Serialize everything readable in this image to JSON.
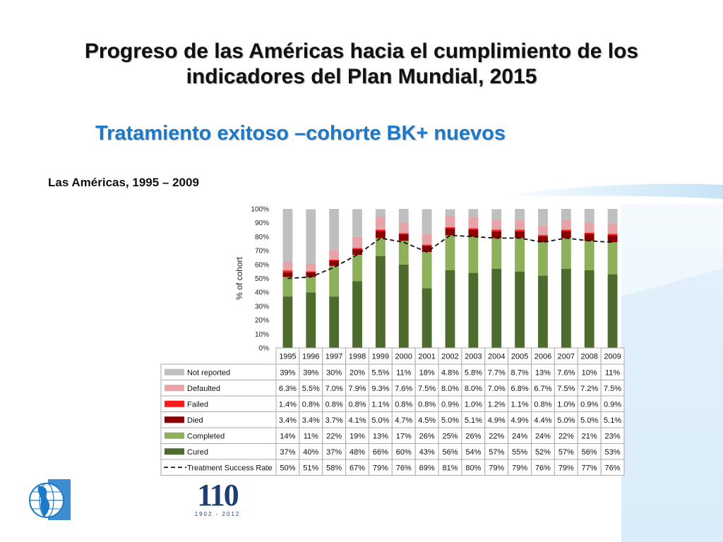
{
  "slide": {
    "title_line1": "Progreso de las Américas hacia el cumplimiento de los",
    "title_line2": "indicadores del Plan Mundial, 2015",
    "subtitle": "Tratamiento exitoso –cohorte BK+ nuevos",
    "region_label": "Las Américas, 1995 – 2009",
    "anniversary_number": "110",
    "anniversary_years": "1902 - 2012"
  },
  "colors": {
    "not_reported": "#bfbfbf",
    "defaulted": "#e6a3a8",
    "failed": "#ff1a1a",
    "died": "#8b0000",
    "completed": "#8fb05a",
    "cured": "#4e6b2e",
    "accent_blue": "#1c79c9"
  },
  "chart_data": {
    "type": "bar",
    "stacked": true,
    "ylabel": "% of cohort",
    "ylim": [
      0,
      100
    ],
    "y_ticks": [
      "0%",
      "10%",
      "20%",
      "30%",
      "40%",
      "50%",
      "60%",
      "70%",
      "80%",
      "90%",
      "100%"
    ],
    "categories": [
      "1995",
      "1996",
      "1997",
      "1998",
      "1999",
      "2000",
      "2001",
      "2002",
      "2003",
      "2004",
      "2005",
      "2006",
      "2007",
      "2008",
      "2009"
    ],
    "series": [
      {
        "name": "Cured",
        "key": "cured",
        "values": [
          37,
          40,
          37,
          48,
          66,
          60,
          43,
          56,
          54,
          57,
          55,
          52,
          57,
          56,
          53
        ],
        "labels": [
          "37%",
          "40%",
          "37%",
          "48%",
          "66%",
          "60%",
          "43%",
          "56%",
          "54%",
          "57%",
          "55%",
          "52%",
          "57%",
          "56%",
          "53%"
        ]
      },
      {
        "name": "Completed",
        "key": "completed",
        "values": [
          14,
          11,
          22,
          19,
          13,
          17,
          26,
          25,
          26,
          22,
          24,
          24,
          22,
          21,
          23
        ],
        "labels": [
          "14%",
          "11%",
          "22%",
          "19%",
          "13%",
          "17%",
          "26%",
          "25%",
          "26%",
          "22%",
          "24%",
          "24%",
          "22%",
          "21%",
          "23%"
        ]
      },
      {
        "name": "Died",
        "key": "died",
        "values": [
          3.4,
          3.4,
          3.7,
          4.1,
          5.0,
          4.7,
          4.5,
          5.0,
          5.1,
          4.9,
          4.9,
          4.4,
          5.0,
          5.0,
          5.1
        ],
        "labels": [
          "3.4%",
          "3.4%",
          "3.7%",
          "4.1%",
          "5.0%",
          "4.7%",
          "4.5%",
          "5.0%",
          "5.1%",
          "4.9%",
          "4.9%",
          "4.4%",
          "5.0%",
          "5.0%",
          "5.1%"
        ]
      },
      {
        "name": "Failed",
        "key": "failed",
        "values": [
          1.4,
          0.8,
          0.8,
          0.8,
          1.1,
          0.8,
          0.8,
          0.9,
          1.0,
          1.2,
          1.1,
          0.8,
          1.0,
          0.9,
          0.9
        ],
        "labels": [
          "1.4%",
          "0.8%",
          "0.8%",
          "0.8%",
          "1.1%",
          "0.8%",
          "0.8%",
          "0.9%",
          "1.0%",
          "1.2%",
          "1.1%",
          "0.8%",
          "1.0%",
          "0.9%",
          "0.9%"
        ]
      },
      {
        "name": "Defaulted",
        "key": "defaulted",
        "values": [
          6.3,
          5.5,
          7.0,
          7.9,
          9.3,
          7.6,
          7.5,
          8.0,
          8.0,
          7.0,
          6.8,
          6.7,
          7.5,
          7.2,
          7.5
        ],
        "labels": [
          "6.3%",
          "5.5%",
          "7.0%",
          "7.9%",
          "9.3%",
          "7.6%",
          "7.5%",
          "8.0%",
          "8.0%",
          "7.0%",
          "6.8%",
          "6.7%",
          "7.5%",
          "7.2%",
          "7.5%"
        ]
      },
      {
        "name": "Not reported",
        "key": "not_reported",
        "values": [
          39,
          39,
          30,
          20,
          5.5,
          11,
          18,
          4.8,
          5.8,
          7.7,
          8.7,
          13,
          7.6,
          10,
          11
        ],
        "labels": [
          "39%",
          "39%",
          "30%",
          "20%",
          "5.5%",
          "11%",
          "18%",
          "4.8%",
          "5.8%",
          "7.7%",
          "8.7%",
          "13%",
          "7.6%",
          "10%",
          "11%"
        ]
      }
    ],
    "line": {
      "name": "Treatment Success Rate",
      "values": [
        50,
        51,
        58,
        67,
        79,
        76,
        69,
        81,
        80,
        79,
        79,
        76,
        79,
        77,
        76
      ],
      "labels": [
        "50%",
        "51%",
        "58%",
        "67%",
        "79%",
        "76%",
        "69%",
        "81%",
        "80%",
        "79%",
        "79%",
        "76%",
        "79%",
        "77%",
        "76%"
      ]
    },
    "table_row_order": [
      "not_reported",
      "defaulted",
      "failed",
      "died",
      "completed",
      "cured",
      "line"
    ],
    "grid": false
  }
}
